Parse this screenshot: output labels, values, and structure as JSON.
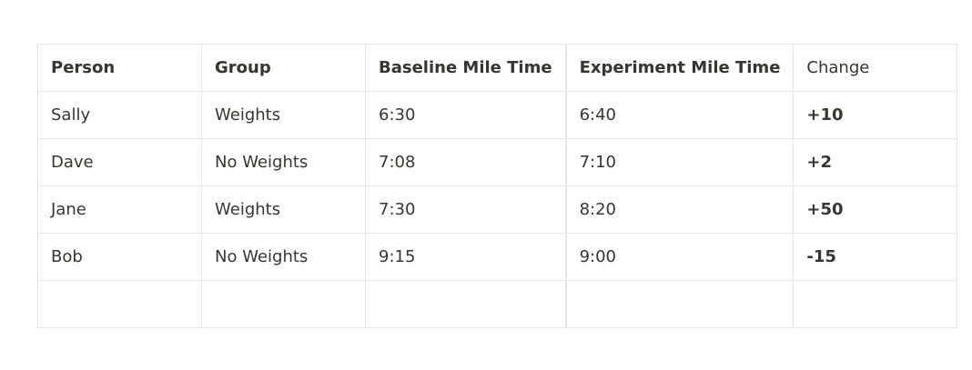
{
  "table": {
    "headers": [
      "Person",
      "Group",
      "Baseline Mile Time",
      "Experiment Mile Time",
      "Change"
    ],
    "rows": [
      [
        "Sally",
        "Weights",
        "6:30",
        "6:40",
        "+10"
      ],
      [
        "Dave",
        "No Weights",
        "7:08",
        "7:10",
        "+2"
      ],
      [
        "Jane",
        "Weights",
        "7:30",
        "8:20",
        "+50"
      ],
      [
        "Bob",
        "No Weights",
        "9:15",
        "9:00",
        "-15"
      ]
    ]
  }
}
